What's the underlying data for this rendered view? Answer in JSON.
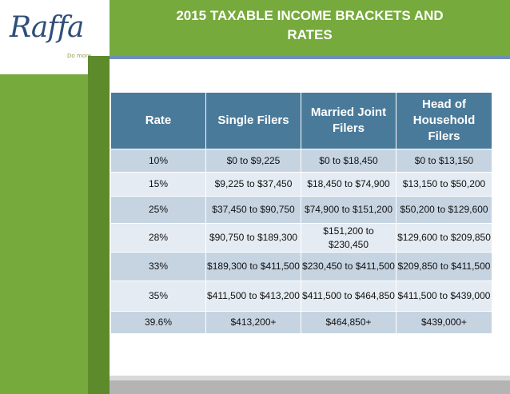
{
  "logo": {
    "word": "Raffa",
    "tagline": "Do more."
  },
  "title": {
    "line1": "2015 TAXABLE INCOME BRACKETS AND",
    "line2": "RATES"
  },
  "table": {
    "headers": [
      "Rate",
      "Single Filers",
      "Married Joint Filers",
      "Head of Household Filers"
    ],
    "rows": [
      [
        "10%",
        "$0 to $9,225",
        "$0 to $18,450",
        "$0 to $13,150"
      ],
      [
        "15%",
        "$9,225 to $37,450",
        "$18,450 to $74,900",
        "$13,150 to $50,200"
      ],
      [
        "25%",
        "$37,450 to $90,750",
        "$74,900 to $151,200",
        "$50,200 to $129,600"
      ],
      [
        "28%",
        "$90,750 to $189,300",
        "$151,200 to $230,450",
        "$129,600 to $209,850"
      ],
      [
        "33%",
        "$189,300 to $411,500",
        "$230,450 to $411,500",
        "$209,850 to $411,500"
      ],
      [
        "35%",
        "$411,500 to $413,200",
        "$411,500 to $464,850",
        "$411,500 to $439,000"
      ],
      [
        "39.6%",
        "$413,200+",
        "$464,850+",
        "$439,000+"
      ]
    ]
  },
  "colors": {
    "green": "#76aa3c",
    "header_blue": "#4a7a9a",
    "row_dark": "#c6d4e2",
    "row_light": "#e4ebf2"
  }
}
